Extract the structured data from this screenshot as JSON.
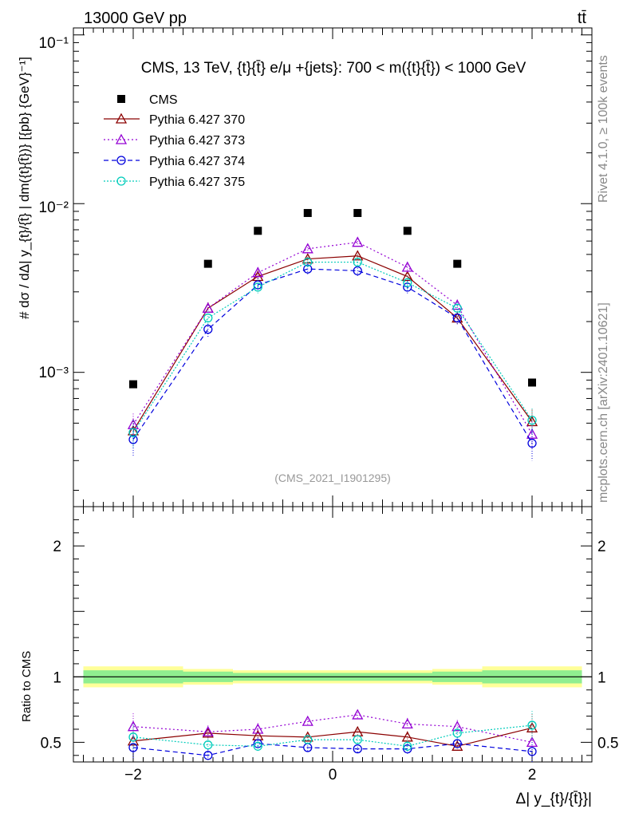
{
  "header": {
    "energy_label": "13000 GeV pp",
    "process_label": "tt̄",
    "side_rivet": "Rivet 4.1.0, ≥ 100k events",
    "side_mcplots": "mcplots.cern.ch [arXiv:2401.10621]"
  },
  "colors": {
    "data": "#000000",
    "p370": "#8b0000",
    "p373": "#9400d3",
    "p374": "#0000dd",
    "p375": "#00ccbb",
    "band_inner": "#90ee90",
    "band_outer": "#ffff99"
  },
  "chart_data": {
    "type": "scatter",
    "title": "CMS, 13 TeV, {t}{t̄} e/μ +{jets}: 700 < m({t}{t̄}) < 1000 GeV",
    "watermark": "(CMS_2021_I1901295)",
    "xlabel": "Δ| y_{t}/{t̄}}|",
    "ylabel": "# dσ / dΔ| y_{t}/{t̄} | dm({t}{t̄})} [{pb} {GeV}⁻¹]",
    "ratio_ylabel": "Ratio to CMS",
    "x_tick_labels": [
      "−2",
      "0",
      "2"
    ],
    "x_ticks": [
      -2,
      0,
      2
    ],
    "xlim": [
      -2.6,
      2.6
    ],
    "ylim_main": [
      0.00016,
      0.11
    ],
    "y_log": true,
    "y_tick_labels": [
      "10⁻¹",
      "10⁻²",
      "10⁻³"
    ],
    "ylim_ratio": [
      0.35,
      2.3
    ],
    "ratio_tick_labels": [
      "2",
      "1",
      "0.5"
    ],
    "ratio_ticks": [
      2,
      1,
      0.5
    ],
    "x": [
      -2,
      -1.25,
      -0.75,
      -0.25,
      0.25,
      0.75,
      1.25,
      2
    ],
    "x_edges": [
      -2.5,
      -1.5,
      -1.0,
      -0.5,
      0,
      0.5,
      1.0,
      1.5,
      2.5
    ],
    "band_inner_pct": [
      5,
      4,
      3,
      3,
      3,
      3,
      4,
      5
    ],
    "band_outer_pct": [
      8,
      6,
      5,
      5,
      5,
      5,
      6,
      8
    ],
    "series": [
      {
        "name": "CMS",
        "key": "data",
        "marker": "square",
        "dash": "",
        "values": [
          0.00085,
          0.0044,
          0.0069,
          0.0088,
          0.0088,
          0.0069,
          0.0044,
          0.00087
        ]
      },
      {
        "name": "Pythia 6.427 370",
        "key": "p370",
        "marker": "triangle",
        "dash": "",
        "values": [
          0.00045,
          0.0024,
          0.0037,
          0.0047,
          0.0049,
          0.0037,
          0.0021,
          0.00051
        ],
        "errors": [
          8e-05,
          0.0002,
          0.0003,
          0.0003,
          0.0003,
          0.0003,
          0.0002,
          9e-05
        ],
        "ratio": [
          0.51,
          0.57,
          0.55,
          0.54,
          0.58,
          0.54,
          0.47,
          0.61
        ]
      },
      {
        "name": "Pythia 6.427 373",
        "key": "p373",
        "marker": "triangle",
        "dash": "2,3",
        "values": [
          0.00049,
          0.0024,
          0.0039,
          0.0054,
          0.0059,
          0.0042,
          0.0025,
          0.00043
        ],
        "errors": [
          8e-05,
          0.0002,
          0.0003,
          0.0003,
          0.0003,
          0.0003,
          0.0002,
          8e-05
        ],
        "ratio": [
          0.62,
          0.58,
          0.6,
          0.66,
          0.71,
          0.64,
          0.62,
          0.5
        ]
      },
      {
        "name": "Pythia 6.427 374",
        "key": "p374",
        "marker": "circle",
        "dash": "6,4",
        "values": [
          0.0004,
          0.0018,
          0.0033,
          0.0041,
          0.004,
          0.0032,
          0.0021,
          0.00038
        ],
        "errors": [
          8e-05,
          0.0002,
          0.0003,
          0.0003,
          0.0003,
          0.0003,
          0.0002,
          8e-05
        ],
        "ratio": [
          0.46,
          0.4,
          0.49,
          0.46,
          0.45,
          0.45,
          0.49,
          0.43
        ]
      },
      {
        "name": "Pythia 6.427 375",
        "key": "p375",
        "marker": "circle",
        "dash": "2,2",
        "values": [
          0.00044,
          0.0021,
          0.0032,
          0.0045,
          0.0045,
          0.0034,
          0.0024,
          0.00052
        ],
        "errors": [
          8e-05,
          0.0002,
          0.0003,
          0.0003,
          0.0003,
          0.0003,
          0.0002,
          9e-05
        ],
        "ratio": [
          0.54,
          0.48,
          0.47,
          0.52,
          0.52,
          0.47,
          0.57,
          0.63
        ]
      }
    ]
  }
}
